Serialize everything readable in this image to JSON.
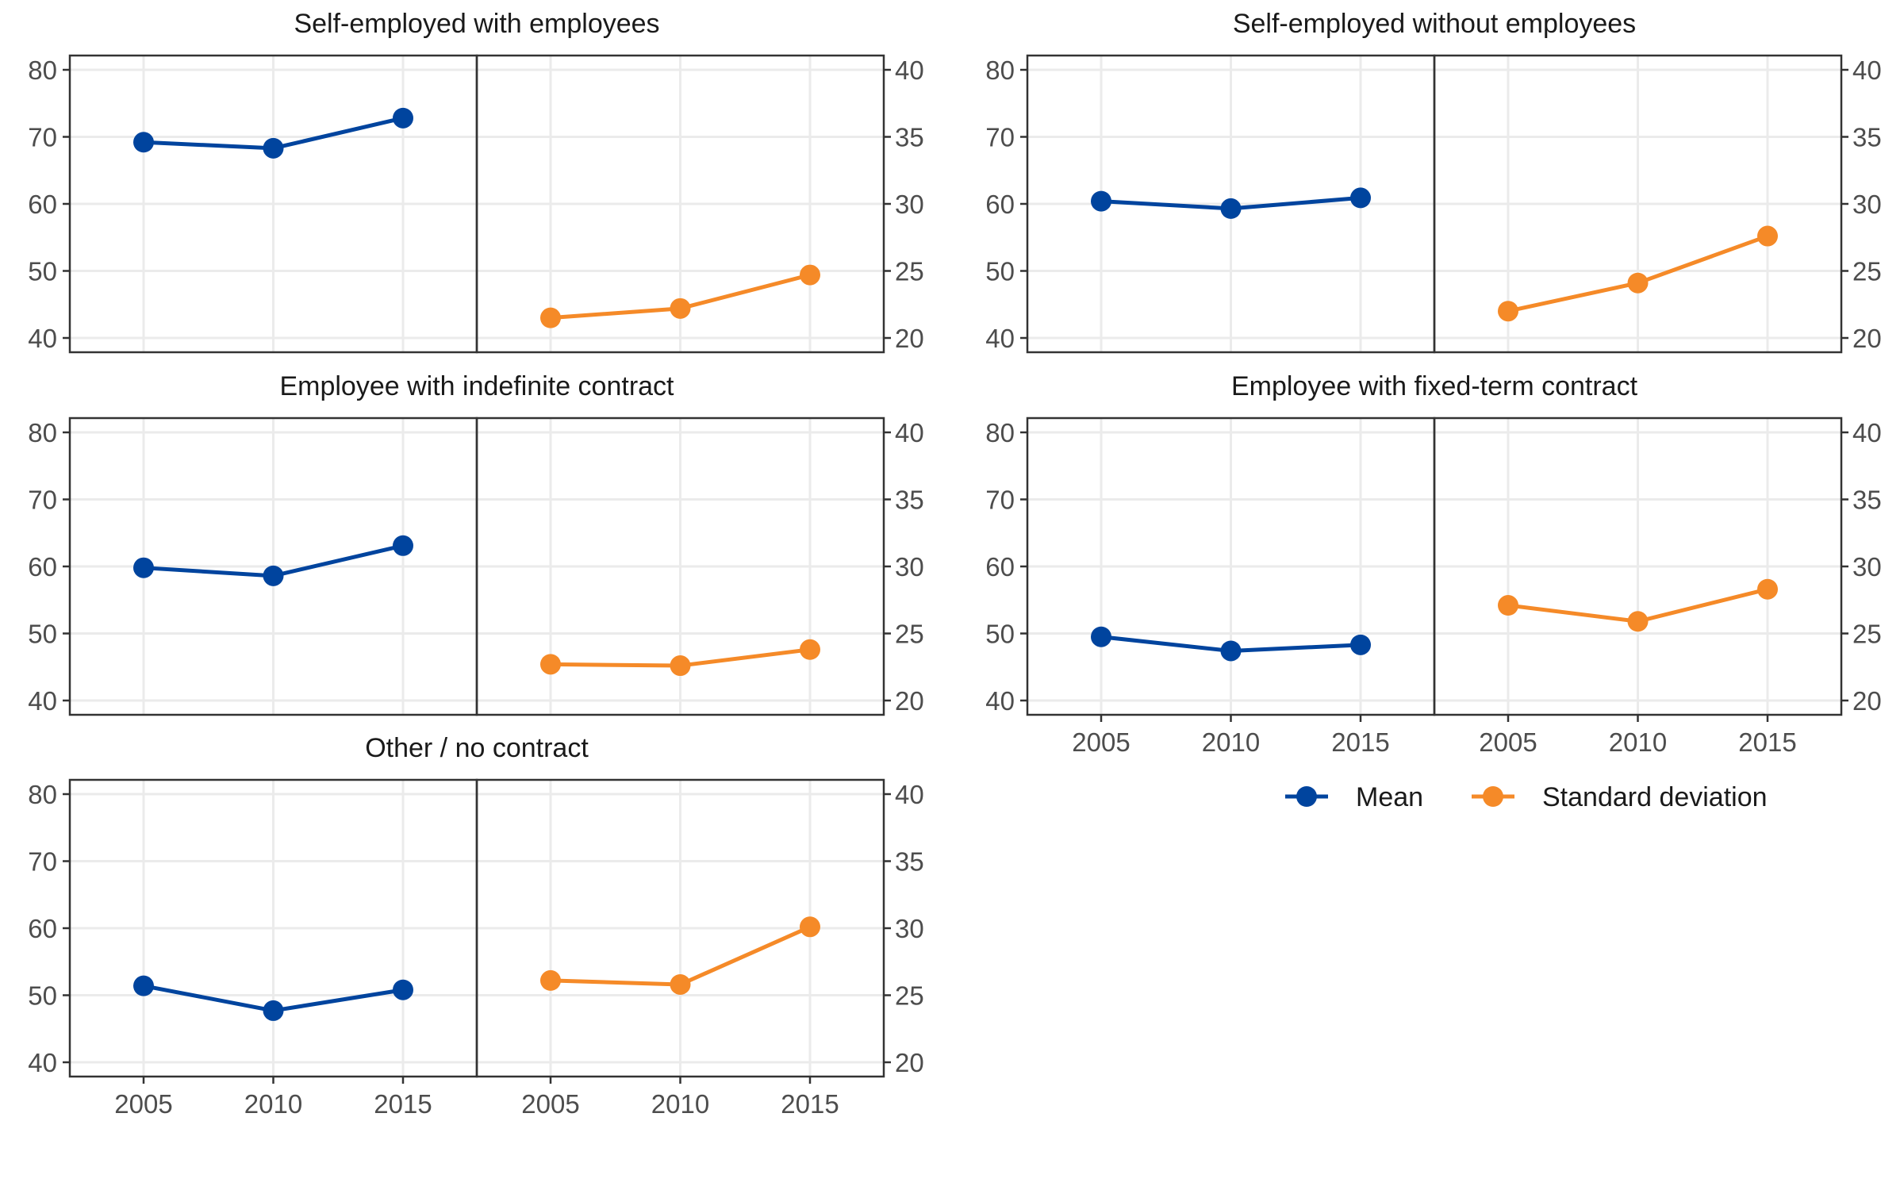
{
  "chart_data": {
    "type": "line",
    "x": [
      2005,
      2010,
      2015
    ],
    "x_ticks": [
      "2005",
      "2010",
      "2015"
    ],
    "left_axis": {
      "ylim": [
        40,
        80
      ],
      "ticks": [
        "40",
        "50",
        "60",
        "70",
        "80"
      ]
    },
    "right_axis": {
      "ylim": [
        20,
        40
      ],
      "ticks": [
        "20",
        "25",
        "30",
        "35",
        "40"
      ]
    },
    "grid": true,
    "legend": {
      "position": "bottom-right",
      "items": [
        {
          "label": "Mean",
          "color": "#00449e"
        },
        {
          "label": "Standard deviation",
          "color": "#f58a28"
        }
      ]
    },
    "colors": {
      "mean": "#00449e",
      "sd": "#f58a28"
    },
    "facets": [
      {
        "title": "Self-employed with employees",
        "mean": [
          69.2,
          68.3,
          72.8
        ],
        "sd": [
          21.5,
          22.2,
          24.7
        ]
      },
      {
        "title": "Self-employed without employees",
        "mean": [
          60.4,
          59.3,
          60.9
        ],
        "sd": [
          22.0,
          24.1,
          27.6
        ]
      },
      {
        "title": "Employee with indefinite contract",
        "mean": [
          59.8,
          58.6,
          63.1
        ],
        "sd": [
          22.7,
          22.6,
          23.8
        ]
      },
      {
        "title": "Employee with fixed-term contract",
        "mean": [
          49.5,
          47.4,
          48.3
        ],
        "sd": [
          27.1,
          25.9,
          28.3
        ]
      },
      {
        "title": "Other / no contract",
        "mean": [
          51.4,
          47.7,
          50.8
        ],
        "sd": [
          26.1,
          25.8,
          30.1
        ]
      }
    ]
  }
}
